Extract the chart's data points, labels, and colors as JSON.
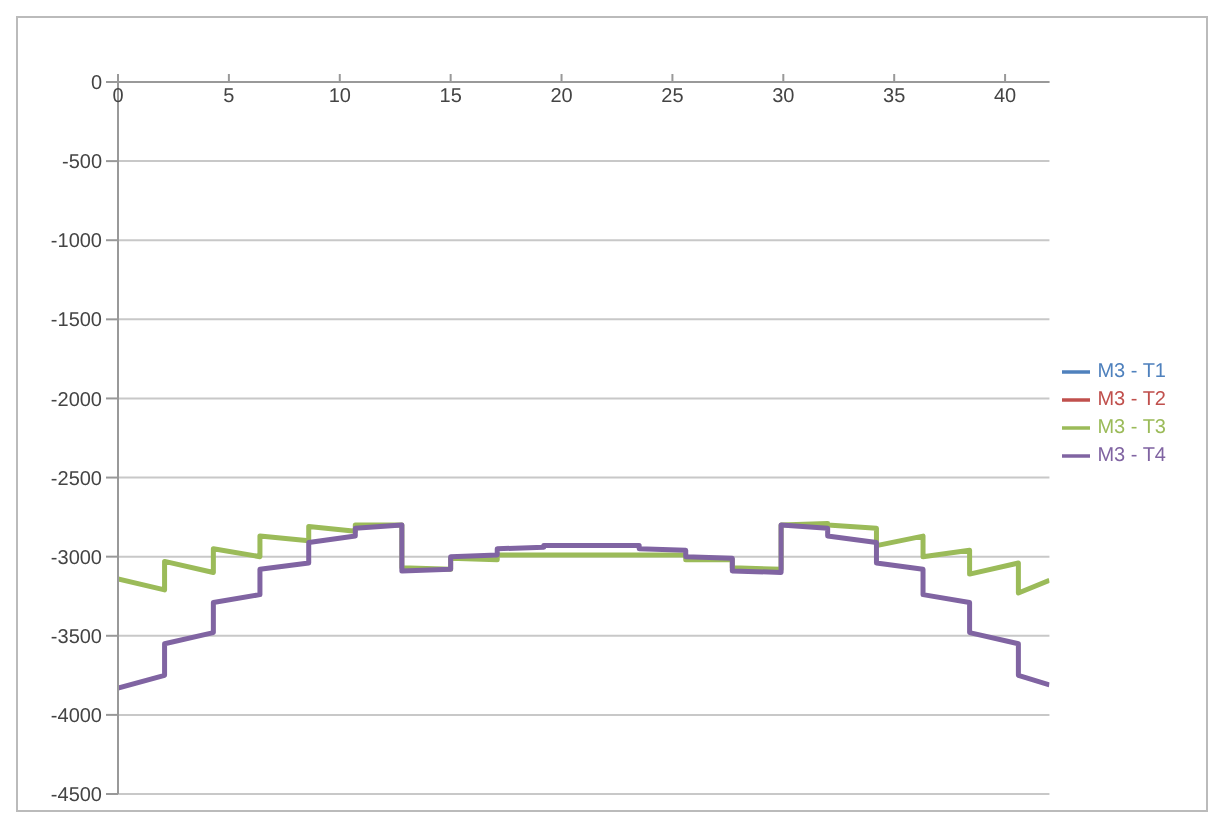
{
  "chart_data": {
    "type": "line",
    "xlim": [
      0,
      42
    ],
    "xticks": [
      0,
      5,
      10,
      15,
      20,
      25,
      30,
      35,
      40
    ],
    "ylim": [
      -4500,
      0
    ],
    "yticks": [
      -4500,
      -4000,
      -3500,
      -3000,
      -2500,
      -2000,
      -1500,
      -1000,
      -500,
      0
    ],
    "grid": "y",
    "legend": "right",
    "marker": "none",
    "series": [
      {
        "name": "M3 - T1",
        "color": "#4f81bd"
      },
      {
        "name": "M3 - T2",
        "color": "#c0504d"
      },
      {
        "name": "M3 - T3",
        "color": "#9bbb59",
        "x": [
          0,
          2.1,
          2.1,
          4.3,
          4.3,
          6.4,
          6.4,
          8.6,
          8.6,
          10.7,
          10.7,
          12.8,
          12.8,
          15,
          15,
          17.1,
          17.1,
          25.6,
          25.6,
          27.7,
          27.7,
          29.9,
          29.9,
          32,
          32,
          34.2,
          34.2,
          36.3,
          36.3,
          38.4,
          38.4,
          40.6,
          40.6,
          42
        ],
        "values": [
          -3140,
          -3210,
          -3030,
          -3100,
          -2950,
          -3000,
          -2870,
          -2900,
          -2810,
          -2840,
          -2800,
          -2800,
          -3070,
          -3080,
          -3010,
          -3020,
          -2990,
          -2990,
          -3020,
          -3020,
          -3070,
          -3080,
          -2800,
          -2790,
          -2800,
          -2820,
          -2930,
          -2870,
          -3000,
          -2960,
          -3110,
          -3040,
          -3230,
          -3150
        ]
      },
      {
        "name": "M3 - T4",
        "color": "#8064a2",
        "x": [
          0,
          2.1,
          2.1,
          4.3,
          4.3,
          6.4,
          6.4,
          8.6,
          8.6,
          10.7,
          10.7,
          12.8,
          12.8,
          15,
          15,
          17.1,
          17.1,
          19.2,
          19.2,
          23.5,
          23.5,
          25.6,
          25.6,
          27.7,
          27.7,
          29.9,
          29.9,
          32,
          32,
          34.2,
          34.2,
          36.3,
          36.3,
          38.4,
          38.4,
          40.6,
          40.6,
          42
        ],
        "values": [
          -3830,
          -3750,
          -3550,
          -3480,
          -3290,
          -3240,
          -3080,
          -3040,
          -2910,
          -2870,
          -2820,
          -2800,
          -3090,
          -3080,
          -3000,
          -2990,
          -2950,
          -2940,
          -2930,
          -2930,
          -2950,
          -2960,
          -3000,
          -3010,
          -3090,
          -3100,
          -2800,
          -2820,
          -2870,
          -2910,
          -3040,
          -3080,
          -3240,
          -3290,
          -3480,
          -3550,
          -3750,
          -3810
        ]
      }
    ]
  }
}
